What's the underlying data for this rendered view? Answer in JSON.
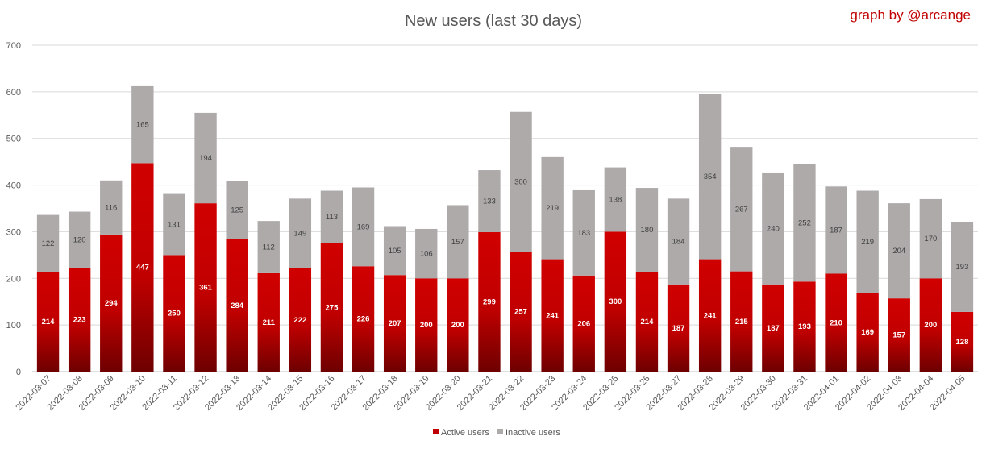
{
  "chart_data": {
    "type": "bar",
    "stacked": true,
    "title": "New users (last 30 days)",
    "credit": "graph by @arcange",
    "xlabel": "",
    "ylabel": "",
    "ylim": [
      0,
      700
    ],
    "yticks": [
      0,
      100,
      200,
      300,
      400,
      500,
      600,
      700
    ],
    "grid": true,
    "legend_position": "bottom",
    "categories": [
      "2022-03-07",
      "2022-03-08",
      "2022-03-09",
      "2022-03-10",
      "2022-03-11",
      "2022-03-12",
      "2022-03-13",
      "2022-03-14",
      "2022-03-15",
      "2022-03-16",
      "2022-03-17",
      "2022-03-18",
      "2022-03-19",
      "2022-03-20",
      "2022-03-21",
      "2022-03-22",
      "2022-03-23",
      "2022-03-24",
      "2022-03-25",
      "2022-03-26",
      "2022-03-27",
      "2022-03-28",
      "2022-03-29",
      "2022-03-30",
      "2022-03-31",
      "2022-04-01",
      "2022-04-02",
      "2022-04-03",
      "2022-04-04",
      "2022-04-05"
    ],
    "series": [
      {
        "name": "Active users",
        "color": "#c00000",
        "values": [
          214,
          223,
          294,
          447,
          250,
          361,
          284,
          211,
          222,
          275,
          226,
          207,
          200,
          200,
          299,
          257,
          241,
          206,
          300,
          214,
          187,
          241,
          215,
          187,
          193,
          210,
          169,
          157,
          200,
          128
        ]
      },
      {
        "name": "Inactive users",
        "color": "#aeaaaa",
        "values": [
          122,
          120,
          116,
          165,
          131,
          194,
          125,
          112,
          149,
          113,
          169,
          105,
          106,
          157,
          133,
          300,
          219,
          183,
          138,
          180,
          184,
          354,
          267,
          240,
          252,
          187,
          219,
          204,
          170,
          193
        ]
      }
    ]
  }
}
